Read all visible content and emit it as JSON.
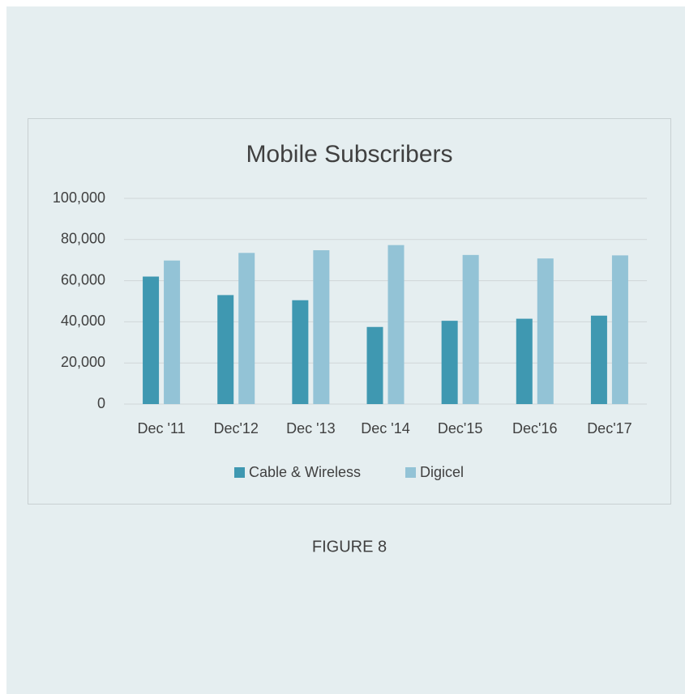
{
  "chart_data": {
    "type": "bar",
    "title": "Mobile Subscribers",
    "caption": "FIGURE 8",
    "categories": [
      "Dec '11",
      "Dec'12",
      "Dec '13",
      "Dec '14",
      "Dec'15",
      "Dec'16",
      "Dec'17"
    ],
    "series": [
      {
        "name": "Cable & Wireless",
        "color": "#3f98b1",
        "values": [
          62000,
          53000,
          50500,
          37500,
          40500,
          41500,
          43000
        ]
      },
      {
        "name": "Digicel",
        "color": "#93c3d6",
        "values": [
          69800,
          73500,
          74800,
          77300,
          72500,
          70800,
          72300
        ]
      }
    ],
    "ylim": [
      0,
      100000
    ],
    "yticks": [
      0,
      {
        "value": 20000,
        "label": "20,000"
      },
      {
        "value": 40000,
        "label": "40,000"
      },
      {
        "value": 60000,
        "label": "60,000"
      },
      {
        "value": 80000,
        "label": "80,000"
      },
      {
        "value": 100000,
        "label": "100,000"
      }
    ],
    "grid": true,
    "legend": "bottom"
  }
}
